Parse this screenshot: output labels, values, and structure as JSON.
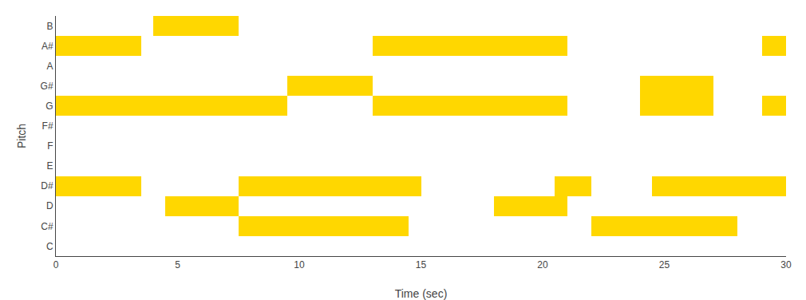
{
  "chart_data": {
    "type": "timeline",
    "xlabel": "Time (sec)",
    "ylabel": "Pitch",
    "categories": [
      "B",
      "A#",
      "A",
      "G#",
      "G",
      "F#",
      "F",
      "E",
      "D#",
      "D",
      "C#",
      "C"
    ],
    "values": [
      [
        [
          4,
          7.5
        ]
      ],
      [
        [
          0,
          3.5
        ],
        [
          13,
          21
        ],
        [
          29,
          30
        ]
      ],
      [],
      [
        [
          9.5,
          13
        ],
        [
          24,
          27
        ]
      ],
      [
        [
          0,
          9.5
        ],
        [
          13,
          21
        ],
        [
          24,
          27
        ],
        [
          29,
          30
        ]
      ],
      [],
      [],
      [],
      [
        [
          0,
          3.5
        ],
        [
          7.5,
          15
        ],
        [
          20.5,
          22
        ],
        [
          24.5,
          30
        ]
      ],
      [
        [
          4.5,
          7.5
        ],
        [
          18,
          21
        ]
      ],
      [
        [
          7.5,
          14.5
        ],
        [
          22,
          28
        ]
      ],
      []
    ],
    "color": "#FFD700",
    "xlim": [
      0,
      30
    ],
    "xticks": [
      0,
      5,
      10,
      15,
      20,
      25,
      30
    ],
    "grid": false
  }
}
